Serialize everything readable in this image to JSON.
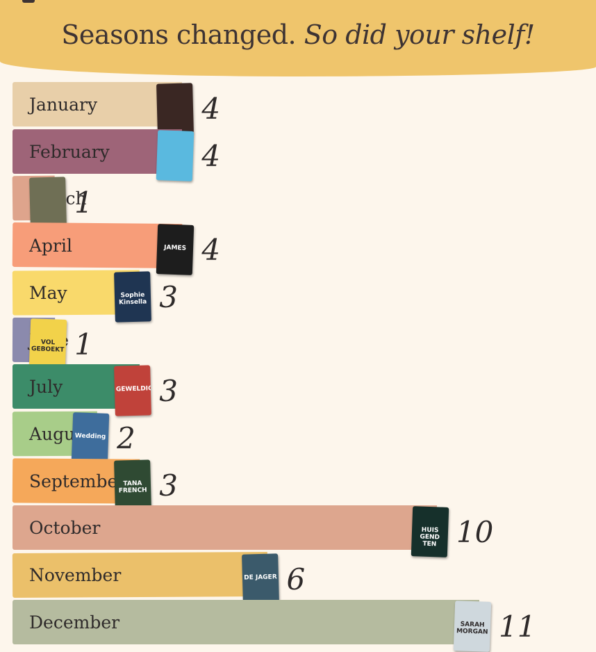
{
  "title": {
    "plain": "Seasons changed.",
    "emphasis": "So did your shelf!"
  },
  "colors": {
    "header": "#efc56c",
    "background": "#fdf6ec",
    "text": "#2e2a2a"
  },
  "chart_data": {
    "type": "bar",
    "orientation": "horizontal",
    "xlim": [
      0,
      11
    ],
    "categories": [
      "January",
      "February",
      "March",
      "April",
      "May",
      "June",
      "July",
      "August",
      "September",
      "October",
      "November",
      "December"
    ],
    "values": [
      4,
      4,
      1,
      4,
      3,
      1,
      3,
      2,
      3,
      10,
      6,
      11
    ],
    "bar_colors": [
      "#e8cfa9",
      "#9e6478",
      "#dea48c",
      "#f79d79",
      "#f9d96b",
      "#8b8aad",
      "#3c8c69",
      "#a8cd89",
      "#f5a85a",
      "#dda68e",
      "#ebc06a",
      "#b5bb9f"
    ],
    "data_labels": [
      "4",
      "4",
      "1",
      "4",
      "3",
      "1",
      "3",
      "2",
      "3",
      "10",
      "6",
      "11"
    ]
  },
  "covers": [
    {
      "month": "January",
      "color": "#3a2723",
      "text": ""
    },
    {
      "month": "February",
      "color": "#5ab9df",
      "text": ""
    },
    {
      "month": "March",
      "color": "#6f6f55",
      "text": ""
    },
    {
      "month": "April",
      "color": "#1d1d1d",
      "text": "JAMES"
    },
    {
      "month": "May",
      "color": "#1f3552",
      "text": "Sophie Kinsella"
    },
    {
      "month": "June",
      "color": "#f2d24a",
      "text": "VOL GEBOEKT"
    },
    {
      "month": "July",
      "color": "#c0423a",
      "text": "GEWELDIG"
    },
    {
      "month": "August",
      "color": "#3e6d9c",
      "text": "Wedding"
    },
    {
      "month": "September",
      "color": "#2f4a33",
      "text": "TANA FRENCH"
    },
    {
      "month": "October",
      "color": "#16302b",
      "text": "HUIS GEND TEN"
    },
    {
      "month": "November",
      "color": "#3b5a6b",
      "text": "DE JAGER"
    },
    {
      "month": "December",
      "color": "#cfd8dd",
      "text": "SARAH MORGAN"
    }
  ]
}
